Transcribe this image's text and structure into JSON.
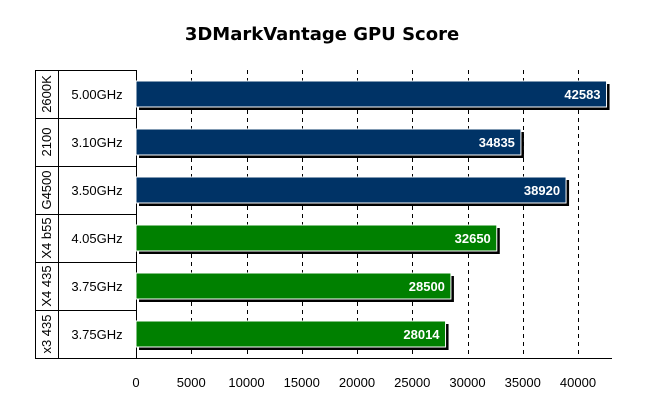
{
  "chart_data": {
    "type": "bar",
    "orientation": "horizontal",
    "title": "3DMarkVantage GPU Score",
    "xlabel": "",
    "ylabel": "",
    "xlim": [
      0,
      43000
    ],
    "xticks": [
      0,
      5000,
      10000,
      15000,
      20000,
      25000,
      30000,
      35000,
      40000
    ],
    "grid": "vertical dashed",
    "legend": "none",
    "categories": [
      {
        "group": "2600K",
        "label": "5.00GHz",
        "value": 42583,
        "color": "#003366"
      },
      {
        "group": "2100",
        "label": "3.10GHz",
        "value": 34835,
        "color": "#003366"
      },
      {
        "group": "G4500",
        "label": "3.50GHz",
        "value": 38920,
        "color": "#003366"
      },
      {
        "group": "X4 b55",
        "label": "4.05GHz",
        "value": 32650,
        "color": "#008000"
      },
      {
        "group": "X4 435",
        "label": "3.75GHz",
        "value": 28500,
        "color": "#008000"
      },
      {
        "group": "x3 435",
        "label": "3.75GHz",
        "value": 28014,
        "color": "#008000"
      }
    ]
  }
}
